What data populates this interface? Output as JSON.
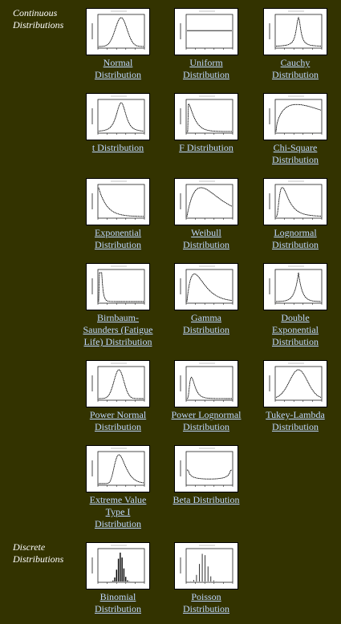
{
  "sections": {
    "continuous": [
      "Continuous",
      "Distributions"
    ],
    "discrete": [
      "Discrete",
      "Distributions"
    ]
  },
  "items": [
    {
      "id": "normal",
      "lines": [
        "Normal",
        "Distribution"
      ],
      "shape": "normal"
    },
    {
      "id": "uniform",
      "lines": [
        "Uniform",
        "Distribution"
      ],
      "shape": "uniform"
    },
    {
      "id": "cauchy",
      "lines": [
        "Cauchy",
        "Distribution"
      ],
      "shape": "cauchy"
    },
    {
      "id": "t",
      "lines": [
        "t Distribution"
      ],
      "shape": "t"
    },
    {
      "id": "f",
      "lines": [
        "F Distribution"
      ],
      "shape": "f"
    },
    {
      "id": "chisq",
      "lines": [
        "Chi-Square",
        "Distribution"
      ],
      "shape": "chisq"
    },
    {
      "id": "exponential",
      "lines": [
        "Exponential",
        "Distribution"
      ],
      "shape": "exponential"
    },
    {
      "id": "weibull",
      "lines": [
        "Weibull",
        "Distribution"
      ],
      "shape": "weibull"
    },
    {
      "id": "lognormal",
      "lines": [
        "Lognormal",
        "Distribution"
      ],
      "shape": "lognormal"
    },
    {
      "id": "birnbaum",
      "lines": [
        "Birnbaum-",
        "Saunders (Fatigue",
        "Life) Distribution"
      ],
      "shape": "birnbaum"
    },
    {
      "id": "gamma",
      "lines": [
        "Gamma",
        "Distribution"
      ],
      "shape": "gamma"
    },
    {
      "id": "dexp",
      "lines": [
        "Double",
        "Exponential",
        "Distribution"
      ],
      "shape": "dexp"
    },
    {
      "id": "pnormal",
      "lines": [
        "Power Normal",
        "Distribution"
      ],
      "shape": "pnormal"
    },
    {
      "id": "plognormal",
      "lines": [
        "Power Lognormal",
        "Distribution"
      ],
      "shape": "plognormal"
    },
    {
      "id": "tukey",
      "lines": [
        "Tukey-Lambda",
        "Distribution"
      ],
      "shape": "tukey"
    },
    {
      "id": "extreme",
      "lines": [
        "Extreme Value",
        "Type I",
        "Distribution"
      ],
      "shape": "extreme"
    },
    {
      "id": "beta",
      "lines": [
        "Beta Distribution"
      ],
      "shape": "beta"
    },
    {
      "id": "binomial",
      "lines": [
        "Binomial",
        "Distribution"
      ],
      "shape": "binomial"
    },
    {
      "id": "poisson",
      "lines": [
        "Poisson",
        "Distribution"
      ],
      "shape": "poisson"
    }
  ]
}
